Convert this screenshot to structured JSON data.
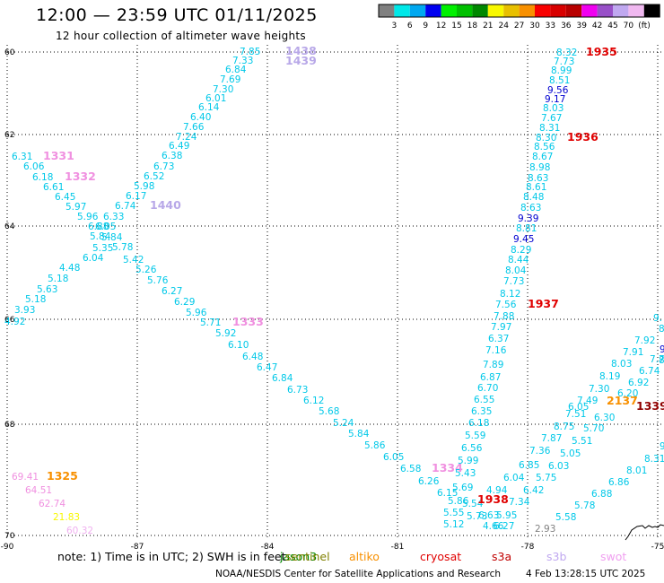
{
  "header": {
    "title": "12:00 — 23:59 UTC 01/11/2025",
    "subtitle": "12 hour collection of altimeter wave heights"
  },
  "colorbar": {
    "unit": "(ft)",
    "colors": [
      "#808080",
      "#00e8e8",
      "#00a8f0",
      "#0000f0",
      "#00f000",
      "#00c000",
      "#008800",
      "#f8f800",
      "#e8c000",
      "#f89000",
      "#f80000",
      "#d80000",
      "#b80000",
      "#f000f0",
      "#9850c8",
      "#c0a8f0",
      "#f0b8f0",
      "#000000"
    ],
    "ticks": [
      "3",
      "6",
      "9",
      "12",
      "15",
      "18",
      "21",
      "24",
      "27",
      "30",
      "33",
      "36",
      "39",
      "42",
      "45",
      "70"
    ]
  },
  "axes": {
    "x_labels": [
      "-90",
      "-87",
      "-84",
      "-81",
      "-78",
      "-75"
    ],
    "y_labels": [
      "60",
      "62",
      "64",
      "66",
      "68",
      "70"
    ]
  },
  "satellites": [
    {
      "name": "jason3",
      "color": "#008800"
    },
    {
      "name": "sentinel",
      "color": "#808000"
    },
    {
      "name": "altiko",
      "color": "#f89000"
    },
    {
      "name": "cryosat",
      "color": "#e00000"
    },
    {
      "name": "s3a",
      "color": "#c00000"
    },
    {
      "name": "s3b",
      "color": "#c0a8f0"
    },
    {
      "name": "swot",
      "color": "#f0a0f0"
    }
  ],
  "tracks": [
    {
      "name": "track-1438",
      "time": "1438",
      "time_color": "#b8a8e8",
      "values": [
        [
          "7.85",
          "#00c8e8"
        ],
        [
          "7.33",
          "#00c8e8"
        ],
        [
          "6.84",
          "#00c8e8"
        ],
        [
          "7.69",
          "#00c8e8"
        ],
        [
          "7.30",
          "#00c8e8"
        ],
        [
          "6.01",
          "#00c8e8"
        ],
        [
          "6.14",
          "#00c8e8"
        ],
        [
          "6.40",
          "#00c8e8"
        ],
        [
          "7.66",
          "#00c8e8"
        ],
        [
          "7.24",
          "#00c8e8"
        ],
        [
          "6.49",
          "#00c8e8"
        ],
        [
          "6.38",
          "#00c8e8"
        ],
        [
          "6.73",
          "#00c8e8"
        ],
        [
          "6.52",
          "#00c8e8"
        ],
        [
          "5.98",
          "#00c8e8"
        ],
        [
          "6.17",
          "#00c8e8"
        ],
        [
          "6.74",
          "#00c8e8"
        ],
        [
          "6.33",
          "#00c8e8"
        ],
        [
          "6.05",
          "#00c8e8"
        ],
        [
          "5.84",
          "#00c8e8"
        ],
        [
          "5.35",
          "#00c8e8"
        ],
        [
          "6.04",
          "#00c8e8"
        ],
        [
          "4.48",
          "#00c8e8"
        ],
        [
          "5.18",
          "#00c8e8"
        ],
        [
          "5.63",
          "#00c8e8"
        ],
        [
          "5.18",
          "#00c8e8"
        ],
        [
          "3.93",
          "#00c8e8"
        ],
        [
          "4.92",
          "#00c8e8"
        ]
      ]
    },
    {
      "name": "track-1439",
      "time": "1439",
      "time_color": "#b8a8e8"
    },
    {
      "name": "track-1440",
      "time": "1440",
      "time_color": "#b8a8e8"
    },
    {
      "name": "track-1331",
      "time": "1331",
      "time_color": "#f090e0",
      "values": [
        [
          "6.31",
          "#00c8e8"
        ],
        [
          "6.06",
          "#00c8e8"
        ],
        [
          "6.18",
          "#00c8e8"
        ],
        [
          "6.61",
          "#00c8e8"
        ],
        [
          "6.45",
          "#00c8e8"
        ],
        [
          "5.97",
          "#00c8e8"
        ],
        [
          "5.96",
          "#00c8e8"
        ],
        [
          "6.88",
          "#00c8e8"
        ],
        [
          "5.84",
          "#00c8e8"
        ],
        [
          "5.78",
          "#00c8e8"
        ],
        [
          "5.42",
          "#00c8e8"
        ],
        [
          "5.26",
          "#00c8e8"
        ],
        [
          "5.76",
          "#00c8e8"
        ],
        [
          "6.27",
          "#00c8e8"
        ],
        [
          "6.29",
          "#00c8e8"
        ],
        [
          "5.96",
          "#00c8e8"
        ],
        [
          "5.71",
          "#00c8e8"
        ],
        [
          "5.92",
          "#00c8e8"
        ],
        [
          "6.10",
          "#00c8e8"
        ],
        [
          "6.48",
          "#00c8e8"
        ],
        [
          "6.47",
          "#00c8e8"
        ],
        [
          "6.84",
          "#00c8e8"
        ],
        [
          "6.73",
          "#00c8e8"
        ],
        [
          "6.12",
          "#00c8e8"
        ],
        [
          "5.68",
          "#00c8e8"
        ],
        [
          "5.24",
          "#00c8e8"
        ],
        [
          "5.84",
          "#00c8e8"
        ],
        [
          "5.86",
          "#00c8e8"
        ],
        [
          "6.05",
          "#00c8e8"
        ],
        [
          "6.58",
          "#00c8e8"
        ],
        [
          "6.26",
          "#00c8e8"
        ],
        [
          "6.15",
          "#00c8e8"
        ],
        [
          "5.86",
          "#00c8e8"
        ],
        [
          "5.55",
          "#00c8e8"
        ],
        [
          "5.12",
          "#00c8e8"
        ]
      ]
    },
    {
      "name": "track-1332",
      "time": "1332",
      "time_color": "#f090e0"
    },
    {
      "name": "track-1333",
      "time": "1333",
      "time_color": "#f090e0"
    },
    {
      "name": "track-1334",
      "time": "1334",
      "time_color": "#f090e0"
    },
    {
      "name": "track-1935",
      "time": "1935",
      "time_color": "#e00000",
      "values": [
        [
          "8.32",
          "#00c8e8"
        ],
        [
          "7.73",
          "#00c8e8"
        ],
        [
          "8.99",
          "#00c8e8"
        ],
        [
          "8.51",
          "#00c8e8"
        ],
        [
          "9.56",
          "#0000d0"
        ],
        [
          "9.17",
          "#0000d0"
        ],
        [
          "8.03",
          "#00c8e8"
        ],
        [
          "7.67",
          "#00c8e8"
        ],
        [
          "8.31",
          "#00c8e8"
        ],
        [
          "8.30",
          "#00c8e8"
        ],
        [
          "8.56",
          "#00c8e8"
        ],
        [
          "8.67",
          "#00c8e8"
        ],
        [
          "8.98",
          "#00c8e8"
        ],
        [
          "8.63",
          "#00c8e8"
        ],
        [
          "8.61",
          "#00c8e8"
        ],
        [
          "8.48",
          "#00c8e8"
        ],
        [
          "8.63",
          "#00c8e8"
        ],
        [
          "9.39",
          "#0000d0"
        ],
        [
          "8.81",
          "#00c8e8"
        ],
        [
          "9.45",
          "#0000d0"
        ],
        [
          "8.29",
          "#00c8e8"
        ],
        [
          "8.44",
          "#00c8e8"
        ],
        [
          "8.04",
          "#00c8e8"
        ],
        [
          "7.73",
          "#00c8e8"
        ],
        [
          "8.12",
          "#00c8e8"
        ],
        [
          "7.56",
          "#00c8e8"
        ],
        [
          "7.88",
          "#00c8e8"
        ],
        [
          "7.97",
          "#00c8e8"
        ],
        [
          "6.37",
          "#00c8e8"
        ],
        [
          "7.16",
          "#00c8e8"
        ],
        [
          "7.89",
          "#00c8e8"
        ],
        [
          "6.87",
          "#00c8e8"
        ],
        [
          "6.70",
          "#00c8e8"
        ],
        [
          "6.55",
          "#00c8e8"
        ],
        [
          "6.35",
          "#00c8e8"
        ],
        [
          "6.18",
          "#00c8e8"
        ],
        [
          "5.59",
          "#00c8e8"
        ],
        [
          "6.56",
          "#00c8e8"
        ],
        [
          "5.99",
          "#00c8e8"
        ],
        [
          "5.43",
          "#00c8e8"
        ],
        [
          "5.69",
          "#00c8e8"
        ],
        [
          "5.54",
          "#00c8e8"
        ],
        [
          "5.73",
          "#00c8e8"
        ],
        [
          "4.66",
          "#00c8e8"
        ]
      ]
    },
    {
      "name": "track-1936",
      "time": "1936",
      "time_color": "#e00000"
    },
    {
      "name": "track-1937",
      "time": "1937",
      "time_color": "#e00000"
    },
    {
      "name": "track-1938",
      "time": "1938",
      "time_color": "#e00000",
      "values": [
        [
          "4.94",
          "#00c8e8"
        ],
        [
          "7.34",
          "#00c8e8"
        ],
        [
          "5.95",
          "#00c8e8"
        ],
        [
          "6.27",
          "#00c8e8"
        ],
        [
          "6.63",
          "#00c8e8"
        ]
      ]
    },
    {
      "name": "track-2137",
      "time": "2137",
      "time_color": "#f89000",
      "values": [
        [
          "8.40",
          "#00c8e8"
        ],
        [
          "7.92",
          "#00c8e8"
        ],
        [
          "7.91",
          "#00c8e8"
        ],
        [
          "8.03",
          "#00c8e8"
        ],
        [
          "8.19",
          "#00c8e8"
        ],
        [
          "7.30",
          "#00c8e8"
        ],
        [
          "7.49",
          "#00c8e8"
        ],
        [
          "6.05",
          "#00c8e8"
        ],
        [
          "6.30",
          "#00c8e8"
        ],
        [
          "8.75",
          "#00c8e8"
        ],
        [
          "7.87",
          "#00c8e8"
        ],
        [
          "7.36",
          "#00c8e8"
        ],
        [
          "6.85",
          "#00c8e8"
        ],
        [
          "6.04",
          "#00c8e8"
        ],
        [
          "6.42",
          "#00c8e8"
        ],
        [
          "5.70",
          "#00c8e8"
        ],
        [
          "5.51",
          "#00c8e8"
        ],
        [
          "5.05",
          "#00c8e8"
        ],
        [
          "6.03",
          "#00c8e8"
        ],
        [
          "5.75",
          "#00c8e8"
        ],
        [
          "7.51",
          "#00c8e8"
        ]
      ]
    },
    {
      "name": "track-1339",
      "time": "1339",
      "time_color": "#900000",
      "values": [
        [
          "7.7",
          "#00c8e8"
        ],
        [
          "6.74",
          "#00c8e8"
        ],
        [
          "6.92",
          "#00c8e8"
        ],
        [
          "6.20",
          "#00c8e8"
        ],
        [
          "8.31",
          "#00c8e8"
        ],
        [
          "8.01",
          "#00c8e8"
        ],
        [
          "6.86",
          "#00c8e8"
        ],
        [
          "6.88",
          "#00c8e8"
        ],
        [
          "5.78",
          "#00c8e8"
        ],
        [
          "5.58",
          "#00c8e8"
        ]
      ]
    },
    {
      "name": "track-1325",
      "time": "1325",
      "time_color": "#f89000",
      "values": [
        [
          "69.41",
          "#f090e0"
        ],
        [
          "64.51",
          "#f090e0"
        ],
        [
          "62.74",
          "#f090e0"
        ],
        [
          "21.83",
          "#f8f800"
        ],
        [
          "60.32",
          "#f0b0f0"
        ]
      ]
    },
    {
      "name": "stray",
      "values": [
        [
          "2.93",
          "#808080"
        ],
        [
          "9.",
          "#00c8e8"
        ],
        [
          "8.",
          "#00c8e8"
        ],
        [
          "9",
          "#0000d0"
        ],
        [
          "9",
          "#00c8e8"
        ]
      ]
    }
  ],
  "footer": {
    "note": "note: 1) Time is in UTC; 2) SWH is in feet",
    "credit": "NOAA/NESDIS Center for Satellite Applications and Research",
    "stamp": "4 Feb 13:28:15 UTC 2025"
  }
}
